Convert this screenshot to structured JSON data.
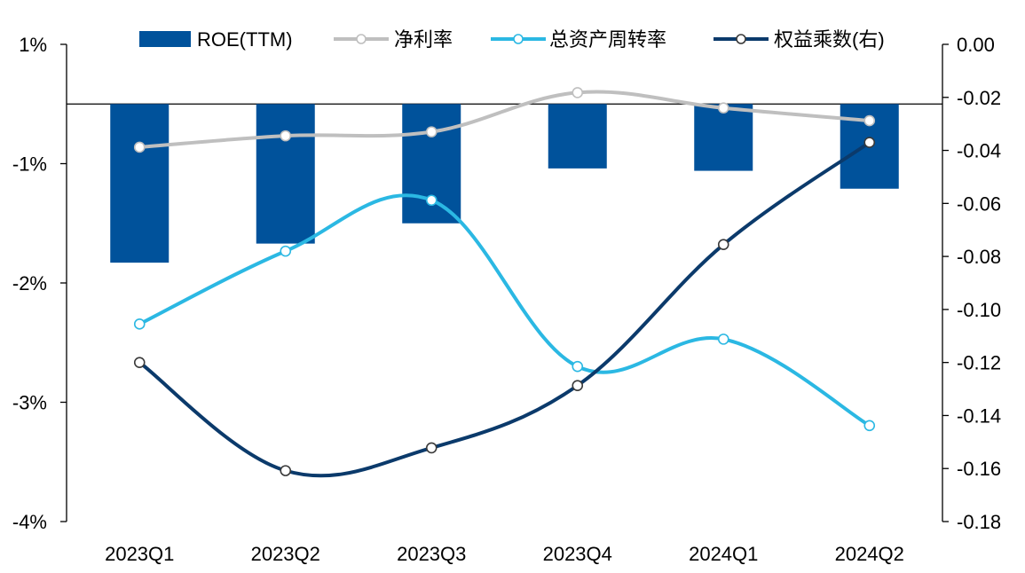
{
  "chart_data": {
    "type": "bar",
    "categories": [
      "2023Q1",
      "2023Q2",
      "2023Q3",
      "2023Q4",
      "2024Q1",
      "2024Q2"
    ],
    "y_left_ticks": [
      "1%",
      "-1%",
      "-2%",
      "-3%",
      "-4%"
    ],
    "y_left_tick_values": [
      0.5,
      -0.5,
      -1.5,
      -2.5,
      -3.5
    ],
    "y_right_ticks": [
      "0.00",
      "-0.02",
      "-0.04",
      "-0.06",
      "-0.08",
      "-0.10",
      "-0.12",
      "-0.14",
      "-0.16",
      "-0.18"
    ],
    "y_right_tick_values": [
      0,
      -0.02,
      -0.04,
      -0.06,
      -0.08,
      -0.1,
      -0.12,
      -0.14,
      -0.16,
      -0.18
    ],
    "ylim_left": [
      -3.5,
      0.5
    ],
    "ylim_right": [
      -0.18,
      0
    ],
    "legend_position": "top",
    "series": [
      {
        "name": "ROE(TTM)",
        "kind": "bar",
        "axis": "left",
        "color": "#00529B",
        "values": [
          -1.33,
          -1.17,
          -1.0,
          -0.54,
          -0.56,
          -0.71
        ]
      },
      {
        "name": "净利率",
        "kind": "line",
        "axis": "right",
        "color": "#BFBFBF",
        "values": [
          -0.0388,
          -0.0345,
          -0.033,
          -0.0182,
          -0.024,
          -0.0288
        ]
      },
      {
        "name": "总资产周转率",
        "kind": "line",
        "axis": "right",
        "color": "#2BB8E3",
        "values": [
          -0.1055,
          -0.078,
          -0.0588,
          -0.1215,
          -0.1112,
          -0.1438
        ]
      },
      {
        "name": "权益乘数(右)",
        "kind": "line",
        "axis": "right",
        "color": "#0B3A6B",
        "values": [
          -0.12,
          -0.1608,
          -0.1522,
          -0.1287,
          -0.0755,
          -0.037
        ]
      }
    ]
  }
}
